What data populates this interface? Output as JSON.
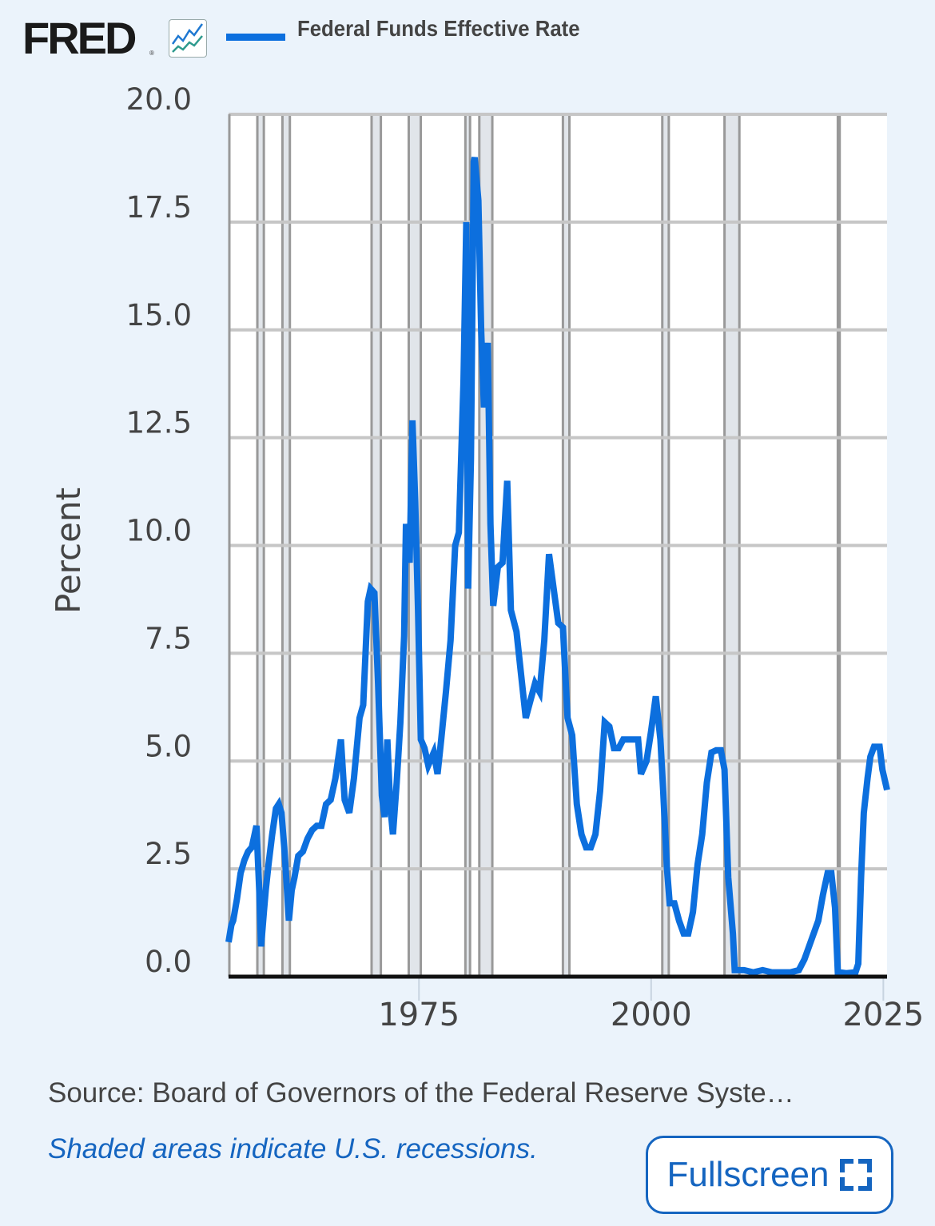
{
  "header": {
    "logo_text": "FRED",
    "logo_reg": "®",
    "logo_icon": "line-chart-icon",
    "legend_label": "Federal Funds Effective Rate",
    "legend_color": "#0c6fde"
  },
  "footer": {
    "source": "Source: Board of Governors of the Federal Reserve Syste…",
    "note": "Shaded areas indicate U.S. recessions.",
    "fullscreen_label": "Fullscreen",
    "fullscreen_icon": "expand-icon"
  },
  "chart_data": {
    "type": "line",
    "title": "Federal Funds Effective Rate",
    "xlabel": "",
    "ylabel": "Percent",
    "ylim": [
      0,
      20
    ],
    "xlim": [
      1954.5,
      2025.4
    ],
    "yticks": [
      "0.0",
      "2.5",
      "5.0",
      "7.5",
      "10.0",
      "12.5",
      "15.0",
      "17.5",
      "20.0"
    ],
    "xticks": [
      "1975",
      "2000",
      "2025"
    ],
    "grid": true,
    "legend_position": "top",
    "series": [
      {
        "name": "Federal Funds Effective Rate",
        "color": "#0c6fde",
        "x": [
          1954.5,
          1954.8,
          1955.0,
          1955.4,
          1955.8,
          1956.2,
          1956.6,
          1957.0,
          1957.5,
          1957.8,
          1958.0,
          1958.3,
          1958.5,
          1958.8,
          1959.2,
          1959.6,
          1959.9,
          1960.2,
          1960.5,
          1960.8,
          1961.0,
          1961.3,
          1961.6,
          1962.0,
          1962.5,
          1963.0,
          1963.5,
          1964.0,
          1964.5,
          1965.0,
          1965.5,
          1966.0,
          1966.6,
          1967.0,
          1967.5,
          1968.0,
          1968.6,
          1969.0,
          1969.5,
          1969.8,
          1970.2,
          1970.6,
          1971.0,
          1971.3,
          1971.6,
          1971.9,
          1972.2,
          1972.6,
          1973.0,
          1973.4,
          1973.6,
          1974.0,
          1974.3,
          1974.6,
          1974.9,
          1975.2,
          1975.6,
          1976.0,
          1976.6,
          1977.0,
          1977.4,
          1977.9,
          1978.4,
          1978.9,
          1979.3,
          1979.8,
          1980.1,
          1980.3,
          1980.6,
          1980.9,
          1981.0,
          1981.4,
          1981.7,
          1982.0,
          1982.4,
          1982.7,
          1983.0,
          1983.5,
          1984.0,
          1984.5,
          1984.9,
          1985.5,
          1986.0,
          1986.5,
          1987.0,
          1987.5,
          1988.0,
          1988.5,
          1989.0,
          1989.5,
          1990.0,
          1990.5,
          1991.0,
          1991.5,
          1992.0,
          1992.5,
          1993.0,
          1993.5,
          1994.0,
          1994.5,
          1995.0,
          1995.5,
          1996.0,
          1996.5,
          1997.0,
          1997.5,
          1998.0,
          1998.6,
          1998.9,
          1999.5,
          2000.0,
          2000.5,
          2001.0,
          2001.3,
          2001.7,
          2002.0,
          2002.5,
          2003.0,
          2003.5,
          2004.0,
          2004.5,
          2005.0,
          2005.5,
          2006.0,
          2006.5,
          2007.0,
          2007.5,
          2007.9,
          2008.3,
          2008.8,
          2009.0,
          2010.0,
          2011.0,
          2012.0,
          2013.0,
          2014.0,
          2015.0,
          2015.9,
          2016.5,
          2017.0,
          2017.5,
          2018.0,
          2018.5,
          2019.0,
          2019.4,
          2019.8,
          2020.1,
          2020.3,
          2021.0,
          2022.0,
          2022.3,
          2022.6,
          2022.9,
          2023.3,
          2023.6,
          2024.0,
          2024.6,
          2024.9,
          2025.4
        ],
        "values": [
          0.8,
          1.2,
          1.3,
          1.8,
          2.4,
          2.7,
          2.9,
          3.0,
          3.5,
          2.0,
          0.7,
          1.5,
          2.0,
          2.6,
          3.3,
          3.9,
          4.0,
          3.8,
          3.0,
          2.0,
          1.3,
          2.0,
          2.3,
          2.8,
          2.9,
          3.2,
          3.4,
          3.5,
          3.5,
          4.0,
          4.1,
          4.6,
          5.5,
          4.1,
          3.8,
          4.6,
          6.0,
          6.3,
          8.7,
          9.0,
          8.9,
          6.8,
          4.2,
          3.7,
          5.5,
          4.0,
          3.3,
          4.5,
          5.9,
          7.9,
          10.5,
          9.6,
          12.9,
          11.0,
          8.5,
          5.5,
          5.3,
          4.9,
          5.2,
          4.7,
          5.5,
          6.6,
          7.8,
          10.0,
          10.3,
          13.8,
          17.5,
          9.0,
          12.0,
          18.9,
          19.0,
          18.0,
          15.0,
          13.2,
          14.7,
          10.5,
          8.6,
          9.5,
          9.6,
          11.5,
          8.5,
          8.0,
          7.0,
          6.0,
          6.4,
          6.8,
          6.6,
          7.8,
          9.8,
          9.0,
          8.2,
          8.1,
          6.0,
          5.6,
          4.0,
          3.3,
          3.0,
          3.0,
          3.3,
          4.3,
          5.9,
          5.8,
          5.3,
          5.3,
          5.5,
          5.5,
          5.5,
          5.5,
          4.7,
          5.0,
          5.7,
          6.5,
          5.5,
          4.3,
          2.5,
          1.7,
          1.7,
          1.3,
          1.0,
          1.0,
          1.5,
          2.6,
          3.3,
          4.5,
          5.2,
          5.25,
          5.25,
          4.8,
          2.3,
          1.0,
          0.15,
          0.15,
          0.1,
          0.15,
          0.1,
          0.1,
          0.1,
          0.15,
          0.4,
          0.7,
          1.0,
          1.3,
          1.9,
          2.4,
          2.4,
          1.6,
          0.1,
          0.1,
          0.08,
          0.1,
          0.3,
          2.3,
          3.8,
          4.6,
          5.1,
          5.33,
          5.33,
          4.8,
          4.33
        ]
      }
    ],
    "recessions": [
      [
        1957.6,
        1958.3
      ],
      [
        1960.3,
        1961.1
      ],
      [
        1969.9,
        1970.9
      ],
      [
        1973.9,
        1975.2
      ],
      [
        1980.0,
        1980.5
      ],
      [
        1981.5,
        1982.9
      ],
      [
        1990.5,
        1991.2
      ],
      [
        2001.2,
        2001.9
      ],
      [
        2007.9,
        2009.5
      ],
      [
        2020.1,
        2020.3
      ]
    ]
  }
}
